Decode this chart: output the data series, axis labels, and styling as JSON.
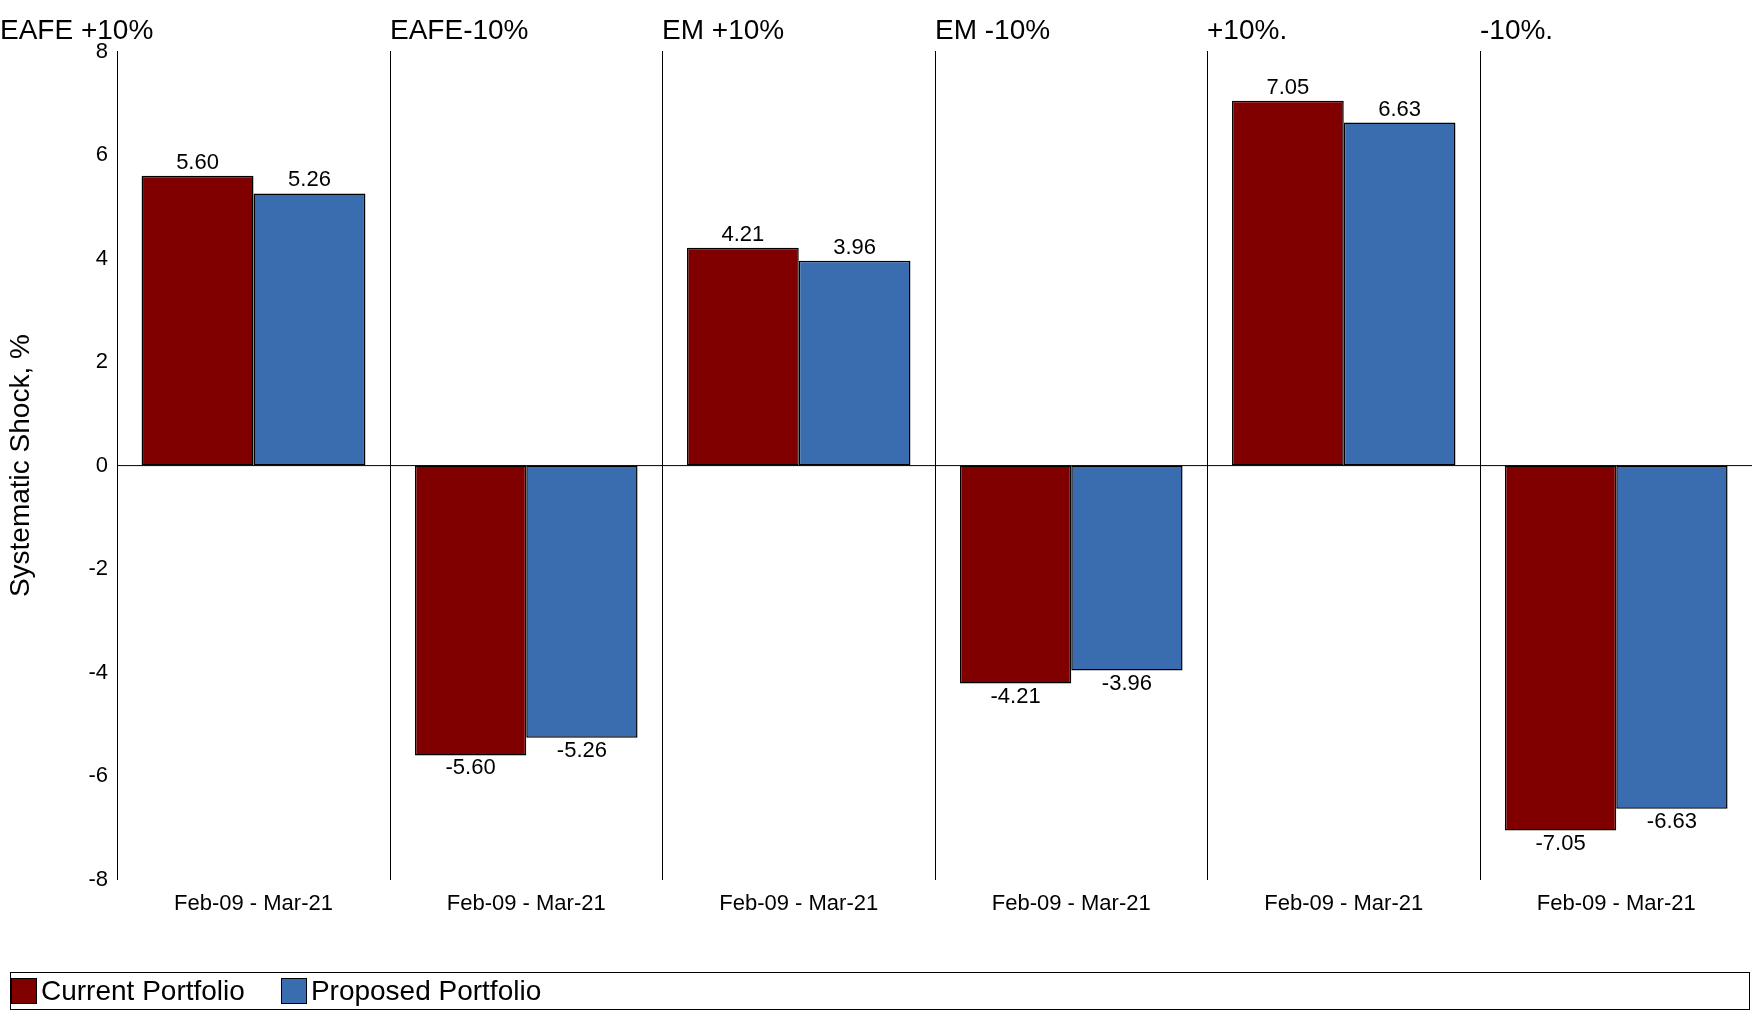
{
  "chart_data": [
    {
      "type": "bar",
      "title": "EAFE +10%",
      "ylabel": "Systematic Shock, %",
      "categories": [
        "Feb-09 - Mar-21"
      ],
      "ylim": [
        -8,
        8
      ],
      "yticks": [
        -8,
        -6,
        -4,
        -2,
        0,
        2,
        4,
        6,
        8
      ],
      "legend": "bottom",
      "series": [
        {
          "name": "Current Portfolio",
          "color": "#800000",
          "values": [
            5.6
          ],
          "value_labels": [
            "5.60"
          ]
        },
        {
          "name": "Proposed Portfolio",
          "color": "#3a6db0",
          "values": [
            5.26
          ],
          "value_labels": [
            "5.26"
          ]
        }
      ]
    },
    {
      "type": "bar",
      "title": "EAFE-10%",
      "categories": [
        "Feb-09 - Mar-21"
      ],
      "ylim": [
        -8,
        8
      ],
      "yticks": [
        -8,
        -6,
        -4,
        -2,
        0,
        2,
        4,
        6,
        8
      ],
      "tick_labels": "x",
      "series": [
        {
          "color": "#800000",
          "values": [
            -5.6
          ],
          "value_labels": [
            "-5.60"
          ]
        },
        {
          "color": "#3a6db0",
          "values": [
            -5.26
          ],
          "value_labels": [
            "-5.26"
          ]
        }
      ]
    },
    {
      "type": "bar",
      "title": "EM +10%",
      "categories": [
        "Feb-09 - Mar-21"
      ],
      "ylim": [
        -8,
        8
      ],
      "yticks": [
        -8,
        -6,
        -4,
        -2,
        0,
        2,
        4,
        6,
        8
      ],
      "tick_labels": "x",
      "series": [
        {
          "color": "#800000",
          "values": [
            4.21
          ],
          "value_labels": [
            "4.21"
          ]
        },
        {
          "color": "#3a6db0",
          "values": [
            3.96
          ],
          "value_labels": [
            "3.96"
          ]
        }
      ]
    },
    {
      "type": "bar",
      "title": "EM -10%",
      "categories": [
        "Feb-09 - Mar-21"
      ],
      "ylim": [
        -8,
        8
      ],
      "yticks": [
        -8,
        -6,
        -4,
        -2,
        0,
        2,
        4,
        6,
        8
      ],
      "tick_labels": "x",
      "series": [
        {
          "color": "#800000",
          "values": [
            -4.21
          ],
          "value_labels": [
            "-4.21"
          ]
        },
        {
          "color": "#3a6db0",
          "values": [
            -3.96
          ],
          "value_labels": [
            "-3.96"
          ]
        }
      ]
    },
    {
      "type": "bar",
      "title": "+10%.",
      "categories": [
        "Feb-09 - Mar-21"
      ],
      "ylim": [
        -8,
        8
      ],
      "yticks": [
        -8,
        -6,
        -4,
        -2,
        0,
        2,
        4,
        6,
        8
      ],
      "tick_labels": "x",
      "series": [
        {
          "color": "#800000",
          "values": [
            7.05
          ],
          "value_labels": [
            "7.05"
          ]
        },
        {
          "color": "#3a6db0",
          "values": [
            6.63
          ],
          "value_labels": [
            "6.63"
          ]
        }
      ]
    },
    {
      "type": "bar",
      "title": "-10%.",
      "categories": [
        "Feb-09 - Mar-21"
      ],
      "ylim": [
        -8,
        8
      ],
      "yticks": [
        -8,
        -6,
        -4,
        -2,
        0,
        2,
        4,
        6,
        8
      ],
      "tick_labels": "x",
      "series": [
        {
          "color": "#800000",
          "values": [
            -7.05
          ],
          "value_labels": [
            "-7.05"
          ]
        },
        {
          "color": "#3a6db0",
          "values": [
            -6.63
          ],
          "value_labels": [
            "-6.63"
          ]
        }
      ]
    }
  ]
}
